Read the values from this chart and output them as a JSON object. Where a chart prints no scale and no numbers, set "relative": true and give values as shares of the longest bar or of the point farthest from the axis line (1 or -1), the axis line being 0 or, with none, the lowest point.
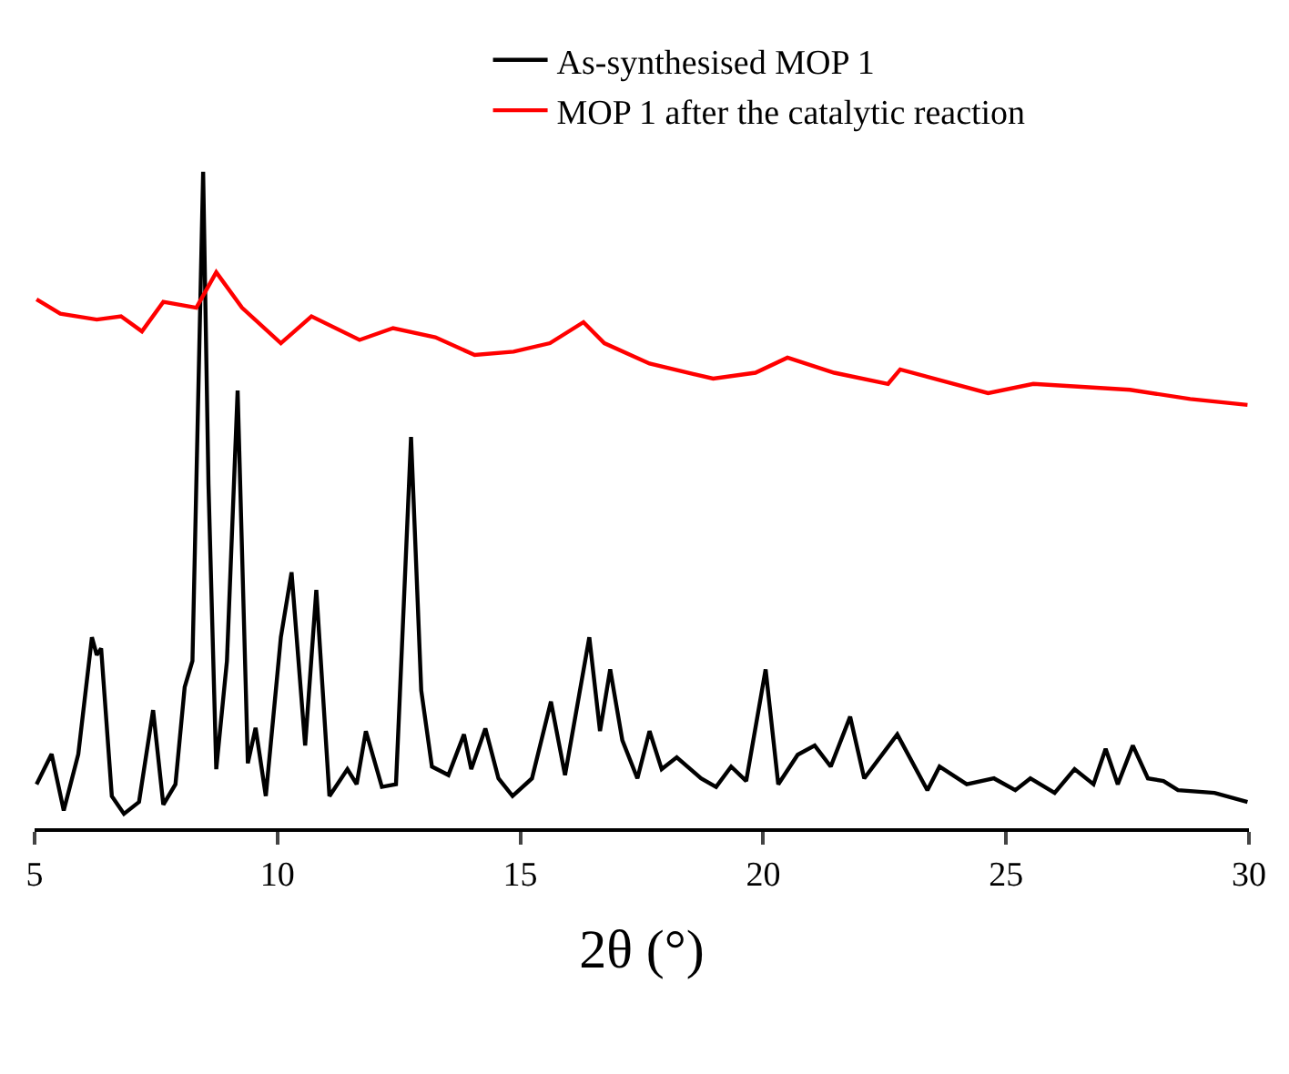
{
  "chart_data": {
    "type": "line",
    "relative": true,
    "xlabel": "2θ (°)",
    "xlim": [
      5,
      30
    ],
    "xticks": [
      5,
      10,
      15,
      20,
      25,
      30
    ],
    "legend": "top",
    "line_style": "solid",
    "marker": "none",
    "tick_labels": "x",
    "series": [
      {
        "name": "As-synthesised MOP 1",
        "color": "#000000",
        "x": [
          5.04,
          5.35,
          5.6,
          5.9,
          6.18,
          6.28,
          6.37,
          6.59,
          6.84,
          7.15,
          7.44,
          7.65,
          7.9,
          8.09,
          8.25,
          8.47,
          8.58,
          8.74,
          8.96,
          9.18,
          9.39,
          9.55,
          9.76,
          10.07,
          10.29,
          10.57,
          10.8,
          11.07,
          11.44,
          11.63,
          11.82,
          12.15,
          12.44,
          12.75,
          12.96,
          13.18,
          13.52,
          13.84,
          13.99,
          14.28,
          14.55,
          14.84,
          15.24,
          15.63,
          15.92,
          16.42,
          16.64,
          16.85,
          17.1,
          17.41,
          17.66,
          17.91,
          18.22,
          18.72,
          19.03,
          19.34,
          19.65,
          20.05,
          20.31,
          20.71,
          21.06,
          21.39,
          21.79,
          22.08,
          22.76,
          23.38,
          23.63,
          24.19,
          24.75,
          25.19,
          25.5,
          26.0,
          26.41,
          26.8,
          27.05,
          27.3,
          27.61,
          27.92,
          28.24,
          28.54,
          29.29,
          29.97
        ],
        "values": [
          0.067,
          0.113,
          0.027,
          0.113,
          0.291,
          0.264,
          0.274,
          0.049,
          0.022,
          0.04,
          0.18,
          0.036,
          0.067,
          0.215,
          0.255,
          1.0,
          0.524,
          0.09,
          0.255,
          0.667,
          0.099,
          0.153,
          0.049,
          0.291,
          0.39,
          0.126,
          0.363,
          0.049,
          0.09,
          0.067,
          0.148,
          0.063,
          0.067,
          0.596,
          0.21,
          0.094,
          0.081,
          0.143,
          0.09,
          0.152,
          0.076,
          0.049,
          0.076,
          0.193,
          0.081,
          0.291,
          0.148,
          0.242,
          0.134,
          0.076,
          0.148,
          0.09,
          0.108,
          0.076,
          0.063,
          0.094,
          0.072,
          0.242,
          0.067,
          0.112,
          0.126,
          0.094,
          0.17,
          0.076,
          0.143,
          0.058,
          0.094,
          0.067,
          0.076,
          0.058,
          0.076,
          0.054,
          0.09,
          0.067,
          0.121,
          0.067,
          0.126,
          0.076,
          0.072,
          0.058,
          0.054,
          0.04
        ]
      },
      {
        "name": "MOP 1 after the catalytic reaction",
        "color": "#ff0000",
        "x": [
          5.04,
          5.53,
          6.28,
          6.78,
          7.21,
          7.65,
          8.33,
          8.74,
          9.27,
          10.07,
          10.7,
          11.69,
          12.38,
          13.25,
          14.06,
          14.86,
          15.61,
          16.3,
          16.73,
          17.66,
          18.97,
          19.84,
          20.5,
          21.46,
          22.57,
          22.82,
          24.63,
          25.56,
          27.55,
          28.79,
          29.97
        ],
        "values": [
          0.806,
          0.784,
          0.775,
          0.78,
          0.757,
          0.802,
          0.793,
          0.847,
          0.793,
          0.739,
          0.78,
          0.744,
          0.762,
          0.748,
          0.721,
          0.726,
          0.739,
          0.771,
          0.739,
          0.708,
          0.685,
          0.694,
          0.717,
          0.694,
          0.677,
          0.699,
          0.663,
          0.677,
          0.668,
          0.654,
          0.645
        ]
      }
    ]
  }
}
